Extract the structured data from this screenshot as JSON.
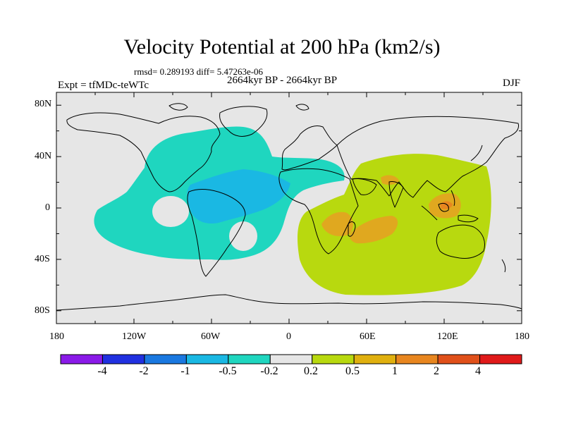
{
  "title": "Velocity Potential at 200 hPa (km2/s)",
  "stats": "rmsd= 0.289193 diff= 5.47263e-06",
  "period": "2664kyr BP - 2664kyr BP",
  "experiment": "Expt = tfMDc-teWTc",
  "season": "DJF",
  "map": {
    "projection": "cylindrical equidistant",
    "lon_range": [
      -180,
      180
    ],
    "lat_range": [
      -90,
      90
    ],
    "ocean_color": "#e6e6e6",
    "coast_color": "#000000",
    "x_ticks": [
      "180",
      "120W",
      "60W",
      "0",
      "60E",
      "120E",
      "180"
    ],
    "y_ticks": [
      "80N",
      "40N",
      "0",
      "40S",
      "80S"
    ],
    "regions": [
      {
        "name": "western-hemisphere-negative",
        "level": "-0.5 to -0.2",
        "color": "#1fd6bf"
      },
      {
        "name": "americas-atlantic-core",
        "level": "-1 to -0.5",
        "color": "#1ab8e3"
      },
      {
        "name": "indian-ocean-positive",
        "level": "0.2 to 0.5",
        "color": "#b8d90f"
      },
      {
        "name": "indian-ocean-cores",
        "level": "0.5 to 1",
        "color": "#e0a81f"
      },
      {
        "name": "maritime-continent-core",
        "level": "1 to 2",
        "color": "#e88a1f"
      }
    ]
  },
  "colorbar": {
    "labels": [
      "-4",
      "-2",
      "-1",
      "-0.5",
      "-0.2",
      "0.2",
      "0.5",
      "1",
      "2",
      "4"
    ],
    "colors": [
      "#8a1ae8",
      "#2030e0",
      "#1a78e0",
      "#1ab8e3",
      "#1fd6bf",
      "#e6e6e6",
      "#b8d90f",
      "#e0b00f",
      "#e8861f",
      "#e0501a",
      "#e01a1a"
    ]
  }
}
